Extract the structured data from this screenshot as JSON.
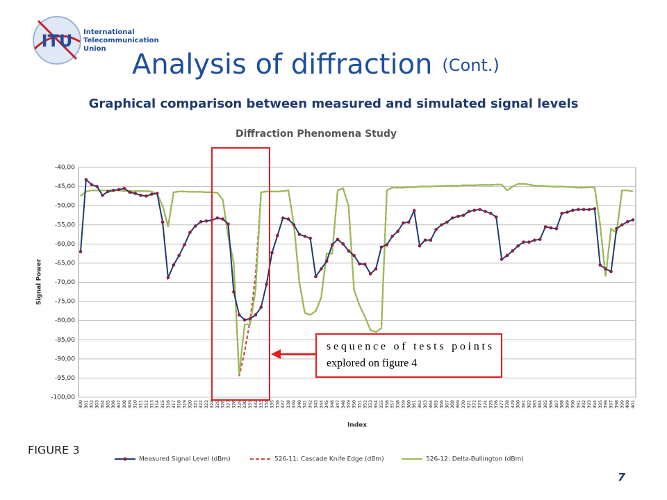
{
  "header": {
    "logo": "ITU",
    "org_lines": [
      "International",
      "Telecommunication",
      "Union"
    ],
    "title": "Analysis of diffraction",
    "title_suffix": "(Cont.)",
    "subtitle": "Graphical comparison between measured and simulated signal levels"
  },
  "annotation": [
    "sequence of tests points",
    "explored on figure 4"
  ],
  "figure_label": "FIGURE 3",
  "page_number": "7",
  "chart_data": {
    "type": "line",
    "title": "Diffraction Phenomena Study",
    "x_label": "Index",
    "y_label": "Signal Power",
    "grid": true,
    "legend": "bottom",
    "categories": [
      "300",
      "301",
      "302",
      "303",
      "304",
      "305",
      "306",
      "307",
      "308",
      "309",
      "310",
      "311",
      "312",
      "313",
      "314",
      "315",
      "316",
      "317",
      "318",
      "319",
      "320",
      "321",
      "322",
      "323",
      "324",
      "325",
      "326",
      "327",
      "328",
      "329",
      "330",
      "331",
      "332",
      "333",
      "334",
      "335",
      "336",
      "337",
      "338",
      "339",
      "340",
      "341",
      "342",
      "343",
      "344",
      "345",
      "346",
      "347",
      "348",
      "349",
      "350",
      "351",
      "352",
      "353",
      "354",
      "355",
      "356",
      "357",
      "358",
      "359",
      "360",
      "361",
      "362",
      "363",
      "364",
      "365",
      "366",
      "367",
      "368",
      "369",
      "370",
      "371",
      "372",
      "373",
      "374",
      "375",
      "376",
      "377",
      "378",
      "379",
      "380",
      "381",
      "382",
      "383",
      "384",
      "385",
      "386",
      "387",
      "388",
      "389",
      "390",
      "391",
      "392",
      "393",
      "394",
      "395",
      "396",
      "397",
      "398",
      "399",
      "400",
      "401"
    ],
    "ylim": [
      -100,
      -40
    ],
    "yticks": [
      {
        "value": -40,
        "label": "-40,00"
      },
      {
        "value": -45,
        "label": "-45,00"
      },
      {
        "value": -50,
        "label": "-50,00"
      },
      {
        "value": -55,
        "label": "-55,00"
      },
      {
        "value": -60,
        "label": "-60,00"
      },
      {
        "value": -65,
        "label": "-65,00"
      },
      {
        "value": -70,
        "label": "-70,00"
      },
      {
        "value": -75,
        "label": "-75,00"
      },
      {
        "value": -80,
        "label": "-80,00"
      },
      {
        "value": -85,
        "label": "-85,00"
      },
      {
        "value": -90,
        "label": "-90,00"
      },
      {
        "value": -95,
        "label": "-95,00"
      },
      {
        "value": -100,
        "label": "-100,00"
      }
    ],
    "series": [
      {
        "name": "Measured Signal Level (dBm)",
        "color": "#1f3a6e",
        "marker_color": "#8b2040",
        "values": [
          -62,
          -43.2,
          -44.5,
          -45,
          -47.3,
          -46.3,
          -46,
          -45.8,
          -45.5,
          -46.5,
          -46.8,
          -47.3,
          -47.5,
          -47,
          -46.8,
          -54.3,
          -68.8,
          -65.5,
          -63,
          -60.2,
          -57,
          -55.3,
          -54.2,
          -54,
          -53.8,
          -53.2,
          -53.5,
          -54.8,
          -72.5,
          -78.5,
          -79.8,
          -79.5,
          -78.5,
          -76.5,
          -70.5,
          -62.3,
          -57.8,
          -53.2,
          -53.5,
          -55,
          -57.5,
          -58,
          -58.5,
          -68.5,
          -66.5,
          -64.5,
          -60.2,
          -58.8,
          -60,
          -61.8,
          -63,
          -65.2,
          -65.3,
          -67.8,
          -66.5,
          -60.8,
          -60.2,
          -58,
          -56.7,
          -54.5,
          -54.3,
          -51.3,
          -60.5,
          -59,
          -59,
          -56.2,
          -55,
          -54.3,
          -53.2,
          -52.8,
          -52.5,
          -51.5,
          -51.2,
          -51,
          -51.5,
          -52,
          -53,
          -64,
          -63,
          -61.8,
          -60.5,
          -59.5,
          -59.5,
          -59,
          -58.8,
          -55.5,
          -55.8,
          -56,
          -52,
          -51.7,
          -51.2,
          -51,
          -51,
          -51,
          -50.8,
          -65.5,
          -66.5,
          -67.2,
          -56,
          -55,
          -54.2,
          -53.7
        ]
      },
      {
        "name": "526-11: Cascade Knife Edge (dBm)",
        "color": "#c0504d",
        "dashed": true,
        "values": [
          -47.5,
          -46.3,
          -46,
          -46,
          -46,
          -46,
          -46,
          -46,
          -46.2,
          -46.2,
          -46.2,
          -46.2,
          -46.2,
          -46.3,
          -47,
          -50,
          -55.5,
          -46.5,
          -46.3,
          -46.3,
          -46.4,
          -46.4,
          -46.4,
          -46.5,
          -46.5,
          -46.6,
          -48.5,
          -58,
          -65,
          -94.5,
          -88,
          -80,
          -68,
          -46.5,
          -46.3,
          -46.3,
          -46.3,
          -46.2,
          -46,
          -55,
          -70,
          -78,
          -78.5,
          -77.5,
          -74,
          -62.5,
          -62.5,
          -46,
          -45.5,
          -50,
          -72,
          -76,
          -79,
          -82.5,
          -83,
          -82,
          -46,
          -45.3,
          -45.3,
          -45.3,
          -45.2,
          -45.2,
          -45,
          -45,
          -45,
          -44.9,
          -44.9,
          -44.8,
          -44.8,
          -44.8,
          -44.7,
          -44.7,
          -44.7,
          -44.6,
          -44.6,
          -44.6,
          -44.5,
          -44.5,
          -46,
          -45,
          -44.3,
          -44.3,
          -44.5,
          -44.8,
          -44.8,
          -44.9,
          -45,
          -45,
          -45,
          -45.1,
          -45.2,
          -45.3,
          -45.3,
          -45.2,
          -45.3,
          -55,
          -68.5,
          -56,
          -57,
          -46,
          -46,
          -46.3
        ]
      },
      {
        "name": "526-12: Delta-Bullington (dBm)",
        "color": "#9bbb59",
        "values": [
          -47.5,
          -46.3,
          -46,
          -46,
          -46,
          -46,
          -46,
          -46,
          -46.2,
          -46.2,
          -46.2,
          -46.2,
          -46.2,
          -46.3,
          -47,
          -50,
          -55.5,
          -46.5,
          -46.3,
          -46.3,
          -46.4,
          -46.4,
          -46.4,
          -46.5,
          -46.5,
          -46.6,
          -48.5,
          -58,
          -65,
          -94,
          -81,
          -81,
          -72,
          -46.5,
          -46.3,
          -46.3,
          -46.3,
          -46.2,
          -46,
          -55,
          -70,
          -78,
          -78.5,
          -77.5,
          -74,
          -62.5,
          -62.5,
          -46,
          -45.5,
          -50,
          -72,
          -76,
          -79,
          -82.5,
          -83,
          -82,
          -46,
          -45.3,
          -45.3,
          -45.3,
          -45.2,
          -45.2,
          -45,
          -45,
          -45,
          -44.9,
          -44.9,
          -44.8,
          -44.8,
          -44.8,
          -44.7,
          -44.7,
          -44.7,
          -44.6,
          -44.6,
          -44.6,
          -44.5,
          -44.5,
          -46,
          -45,
          -44.3,
          -44.3,
          -44.5,
          -44.8,
          -44.8,
          -44.9,
          -45,
          -45,
          -45,
          -45.1,
          -45.2,
          -45.3,
          -45.3,
          -45.2,
          -45.3,
          -55,
          -68.5,
          -56,
          -57,
          -46,
          -46,
          -46.3
        ]
      }
    ]
  }
}
